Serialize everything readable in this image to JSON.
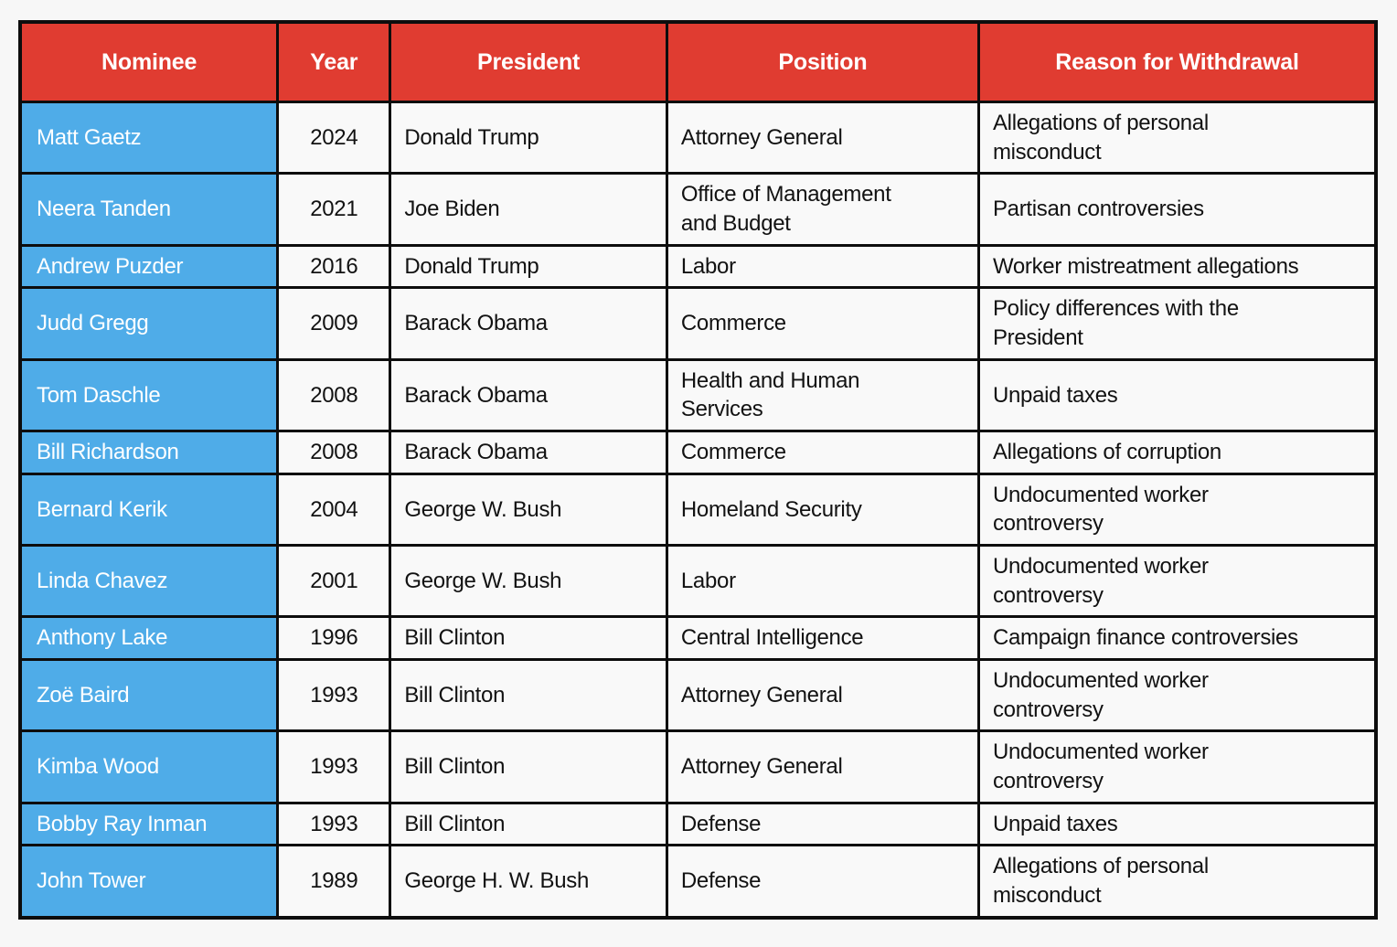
{
  "colors": {
    "page_bg": "#f7f7f7",
    "header_bg": "#e03c31",
    "header_text": "#ffffff",
    "nominee_bg": "#4face8",
    "nominee_text": "#ffffff",
    "cell_bg": "#f9f9f9",
    "body_text": "#121212",
    "border_color": "#0d0d0d"
  },
  "table": {
    "columns": [
      "Nominee",
      "Year",
      "President",
      "Position",
      "Reason for Withdrawal"
    ],
    "rows": [
      {
        "nominee": "Matt Gaetz",
        "year": "2024",
        "president": "Donald Trump",
        "position": "Attorney General",
        "reason": "Allegations of personal\nmisconduct"
      },
      {
        "nominee": "Neera Tanden",
        "year": "2021",
        "president": "Joe Biden",
        "position": "Office of Management\nand Budget",
        "reason": "Partisan controversies"
      },
      {
        "nominee": "Andrew Puzder",
        "year": "2016",
        "president": "Donald Trump",
        "position": "Labor",
        "reason": "Worker mistreatment allegations"
      },
      {
        "nominee": "Judd Gregg",
        "year": "2009",
        "president": "Barack Obama",
        "position": "Commerce",
        "reason": "Policy differences with the\nPresident"
      },
      {
        "nominee": "Tom Daschle",
        "year": "2008",
        "president": "Barack Obama",
        "position": "Health and Human\nServices",
        "reason": "Unpaid taxes"
      },
      {
        "nominee": "Bill Richardson",
        "year": "2008",
        "president": "Barack Obama",
        "position": "Commerce",
        "reason": "Allegations of corruption"
      },
      {
        "nominee": "Bernard Kerik",
        "year": "2004",
        "president": "George W. Bush",
        "position": "Homeland Security",
        "reason": "Undocumented worker\ncontroversy"
      },
      {
        "nominee": "Linda Chavez",
        "year": "2001",
        "president": "George W. Bush",
        "position": "Labor",
        "reason": "Undocumented worker\ncontroversy"
      },
      {
        "nominee": "Anthony Lake",
        "year": "1996",
        "president": "Bill Clinton",
        "position": "Central Intelligence",
        "reason": "Campaign finance controversies"
      },
      {
        "nominee": "Zoë Baird",
        "year": "1993",
        "president": "Bill Clinton",
        "position": "Attorney General",
        "reason": "Undocumented worker\ncontroversy"
      },
      {
        "nominee": "Kimba Wood",
        "year": "1993",
        "president": "Bill Clinton",
        "position": "Attorney General",
        "reason": "Undocumented worker\ncontroversy"
      },
      {
        "nominee": "Bobby Ray Inman",
        "year": "1993",
        "president": "Bill Clinton",
        "position": "Defense",
        "reason": "Unpaid taxes"
      },
      {
        "nominee": "John Tower",
        "year": "1989",
        "president": "George H. W. Bush",
        "position": "Defense",
        "reason": "Allegations of personal\nmisconduct"
      }
    ]
  },
  "chart_data": {
    "type": "table",
    "columns": [
      "Nominee",
      "Year",
      "President",
      "Position",
      "Reason for Withdrawal"
    ],
    "rows": [
      [
        "Matt Gaetz",
        "2024",
        "Donald Trump",
        "Attorney General",
        "Allegations of personal misconduct"
      ],
      [
        "Neera Tanden",
        "2021",
        "Joe Biden",
        "Office of Management and Budget",
        "Partisan controversies"
      ],
      [
        "Andrew Puzder",
        "2016",
        "Donald Trump",
        "Labor",
        "Worker mistreatment allegations"
      ],
      [
        "Judd Gregg",
        "2009",
        "Barack Obama",
        "Commerce",
        "Policy differences with the President"
      ],
      [
        "Tom Daschle",
        "2008",
        "Barack Obama",
        "Health and Human Services",
        "Unpaid taxes"
      ],
      [
        "Bill Richardson",
        "2008",
        "Barack Obama",
        "Commerce",
        "Allegations of corruption"
      ],
      [
        "Bernard Kerik",
        "2004",
        "George W. Bush",
        "Homeland Security",
        "Undocumented worker controversy"
      ],
      [
        "Linda Chavez",
        "2001",
        "George W. Bush",
        "Labor",
        "Undocumented worker controversy"
      ],
      [
        "Anthony Lake",
        "1996",
        "Bill Clinton",
        "Central Intelligence",
        "Campaign finance controversies"
      ],
      [
        "Zoë Baird",
        "1993",
        "Bill Clinton",
        "Attorney General",
        "Undocumented worker controversy"
      ],
      [
        "Kimba Wood",
        "1993",
        "Bill Clinton",
        "Attorney General",
        "Undocumented worker controversy"
      ],
      [
        "Bobby Ray Inman",
        "1993",
        "Bill Clinton",
        "Defense",
        "Unpaid taxes"
      ],
      [
        "John Tower",
        "1989",
        "George H. W. Bush",
        "Defense",
        "Allegations of personal misconduct"
      ]
    ],
    "title": "",
    "layout_hints": {
      "header_style": "red background, bold white centered text",
      "first_column_style": "blue background, white left-aligned text",
      "grid": "heavy black borders"
    }
  }
}
